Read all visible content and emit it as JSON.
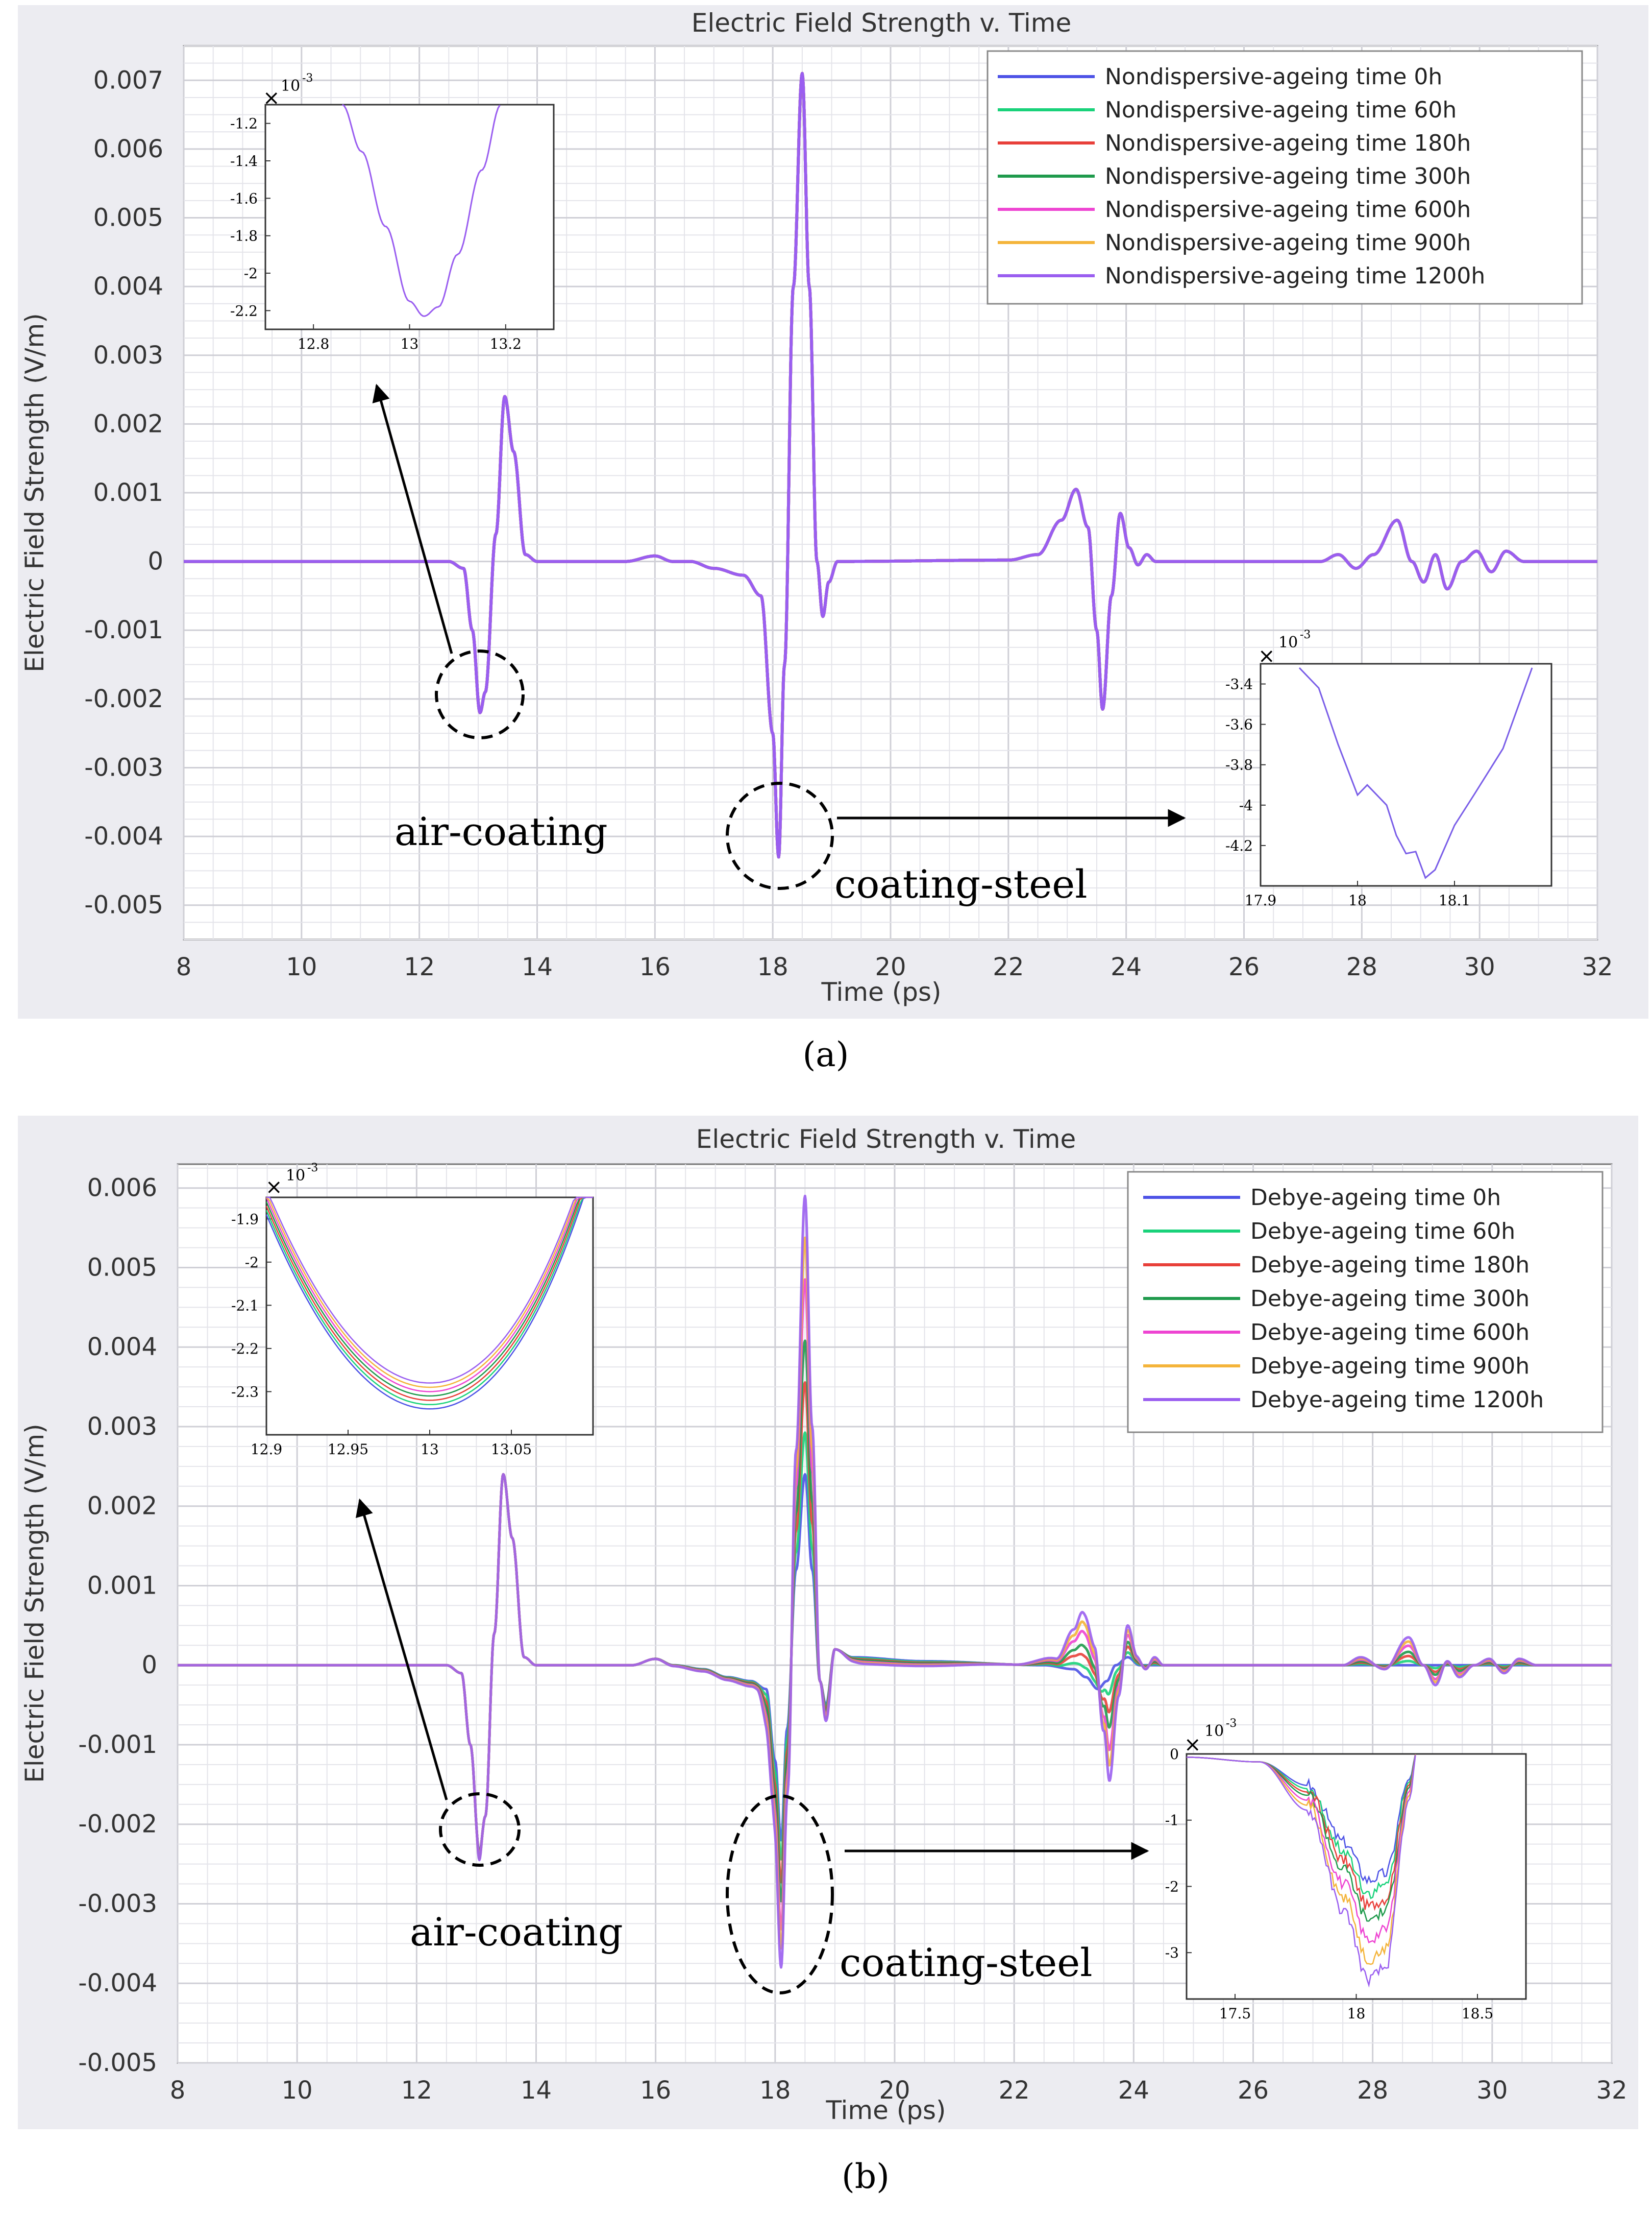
{
  "chart_data": [
    {
      "type": "line",
      "panel_label": "(a)",
      "title": "Electric Field Strength v. Time",
      "xlabel": "Time (ps)",
      "ylabel": "Electric Field Strength (V/m)",
      "xlim": [
        8,
        32
      ],
      "ylim": [
        -0.0055,
        0.0075
      ],
      "xticks": [
        8,
        10,
        12,
        14,
        16,
        18,
        20,
        22,
        24,
        26,
        28,
        30,
        32
      ],
      "yticks": [
        0.007,
        0.006,
        0.005,
        0.004,
        0.003,
        0.002,
        0.001,
        0,
        -0.001,
        -0.002,
        -0.003,
        -0.004,
        -0.005
      ],
      "ytick_labels": [
        "0.007",
        "0.006",
        "0.005",
        "0.004",
        "0.003",
        "0.002",
        "0.001",
        "0",
        "-0.001",
        "-0.002",
        "-0.003",
        "-0.004",
        "-0.005"
      ],
      "grid": true,
      "legend_position": "top-right",
      "series": [
        {
          "name": "Nondispersive-ageing time 0h",
          "color": "#4d52e6",
          "scale": 1.0
        },
        {
          "name": "Nondispersive-ageing time 60h",
          "color": "#19d27a",
          "scale": 1.0
        },
        {
          "name": "Nondispersive-ageing time 180h",
          "color": "#e8403a",
          "scale": 1.0
        },
        {
          "name": "Nondispersive-ageing time 300h",
          "color": "#1f9a4c",
          "scale": 1.0
        },
        {
          "name": "Nondispersive-ageing time 600h",
          "color": "#ee44d2",
          "scale": 1.0
        },
        {
          "name": "Nondispersive-ageing time 900h",
          "color": "#f4b43a",
          "scale": 1.0
        },
        {
          "name": "Nondispersive-ageing time 1200h",
          "color": "#9a5ef0",
          "scale": 1.0
        }
      ],
      "base_waveform": {
        "points": [
          [
            8,
            0
          ],
          [
            12.5,
            0
          ],
          [
            12.75,
            -0.0001
          ],
          [
            12.9,
            -0.001
          ],
          [
            13.03,
            -0.0022
          ],
          [
            13.12,
            -0.0019
          ],
          [
            13.3,
            0.0004
          ],
          [
            13.45,
            0.0024
          ],
          [
            13.6,
            0.0016
          ],
          [
            13.8,
            0.0001
          ],
          [
            14.0,
            0
          ],
          [
            15.5,
            0
          ],
          [
            16.0,
            8e-05
          ],
          [
            16.3,
            0
          ],
          [
            16.6,
            0
          ],
          [
            17.0,
            -0.0001
          ],
          [
            17.5,
            -0.0002
          ],
          [
            17.8,
            -0.0005
          ],
          [
            18.0,
            -0.0025
          ],
          [
            18.1,
            -0.0043
          ],
          [
            18.2,
            -0.0015
          ],
          [
            18.35,
            0.004
          ],
          [
            18.5,
            0.0071
          ],
          [
            18.62,
            0.004
          ],
          [
            18.75,
            0
          ],
          [
            18.85,
            -0.0008
          ],
          [
            18.95,
            -0.0003
          ],
          [
            19.1,
            0
          ],
          [
            22.0,
            2e-05
          ],
          [
            22.5,
            0.0001
          ],
          [
            22.9,
            0.0006
          ],
          [
            23.15,
            0.00105
          ],
          [
            23.35,
            0.0005
          ],
          [
            23.5,
            -0.001
          ],
          [
            23.6,
            -0.00215
          ],
          [
            23.75,
            -0.0005
          ],
          [
            23.9,
            0.0007
          ],
          [
            24.05,
            0.0002
          ],
          [
            24.2,
            -5e-05
          ],
          [
            24.35,
            0.0001
          ],
          [
            24.5,
            0
          ],
          [
            27.3,
            0
          ],
          [
            27.6,
            0.0001
          ],
          [
            27.9,
            -0.0001
          ],
          [
            28.2,
            0.0001
          ],
          [
            28.6,
            0.0006
          ],
          [
            28.85,
            0
          ],
          [
            29.05,
            -0.0003
          ],
          [
            29.25,
            0.0001
          ],
          [
            29.45,
            -0.0004
          ],
          [
            29.7,
            0
          ],
          [
            29.95,
            0.00015
          ],
          [
            30.2,
            -0.00015
          ],
          [
            30.45,
            0.00015
          ],
          [
            30.75,
            0
          ],
          [
            32,
            0
          ]
        ]
      },
      "annotations": [
        {
          "text": "air-coating"
        },
        {
          "text": "coating-steel"
        }
      ],
      "insets": [
        {
          "name": "inset-air-coating",
          "exponent": "10",
          "exponent_power": "-3",
          "xlim": [
            12.7,
            13.3
          ],
          "ylim": [
            -2.3,
            -1.1
          ],
          "xticks": [
            12.8,
            13,
            13.2
          ],
          "xtick_labels": [
            "12.8",
            "13",
            "13.2"
          ],
          "yticks": [
            -1.2,
            -1.4,
            -1.6,
            -1.8,
            -2,
            -2.2
          ],
          "ytick_labels": [
            "-1.2",
            "-1.4",
            "-1.6",
            "-1.8",
            "-2",
            "-2.2"
          ],
          "curve_points": [
            [
              12.86,
              -1.1
            ],
            [
              12.9,
              -1.35
            ],
            [
              12.95,
              -1.75
            ],
            [
              13.0,
              -2.15
            ],
            [
              13.03,
              -2.23
            ],
            [
              13.06,
              -2.18
            ],
            [
              13.1,
              -1.9
            ],
            [
              13.15,
              -1.45
            ],
            [
              13.19,
              -1.1
            ]
          ]
        },
        {
          "name": "inset-coating-steel",
          "exponent": "10",
          "exponent_power": "-3",
          "xlim": [
            17.9,
            18.2
          ],
          "ylim": [
            -4.4,
            -3.3
          ],
          "xticks": [
            17.9,
            18,
            18.1
          ],
          "xtick_labels": [
            "17.9",
            "18",
            "18.1"
          ],
          "yticks": [
            -3.4,
            -3.6,
            -3.8,
            -4,
            -4.2
          ],
          "ytick_labels": [
            "-3.4",
            "-3.6",
            "-3.8",
            "-4",
            "-4.2"
          ],
          "curve_points": [
            [
              17.94,
              -3.32
            ],
            [
              17.96,
              -3.42
            ],
            [
              17.98,
              -3.7
            ],
            [
              18.0,
              -3.95
            ],
            [
              18.01,
              -3.9
            ],
            [
              18.03,
              -4.0
            ],
            [
              18.04,
              -4.15
            ],
            [
              18.05,
              -4.24
            ],
            [
              18.06,
              -4.23
            ],
            [
              18.07,
              -4.36
            ],
            [
              18.08,
              -4.32
            ],
            [
              18.1,
              -4.1
            ],
            [
              18.12,
              -3.95
            ],
            [
              18.15,
              -3.72
            ],
            [
              18.18,
              -3.32
            ]
          ]
        }
      ]
    },
    {
      "type": "line",
      "panel_label": "(b)",
      "title": "Electric Field Strength v. Time",
      "xlabel": "Time (ps)",
      "ylabel": "Electric Field Strength (V/m)",
      "xlim": [
        8,
        32
      ],
      "ylim": [
        -0.005,
        0.0063
      ],
      "xticks": [
        8,
        10,
        12,
        14,
        16,
        18,
        20,
        22,
        24,
        26,
        28,
        30,
        32
      ],
      "yticks": [
        0.006,
        0.005,
        0.004,
        0.003,
        0.002,
        0.001,
        0,
        -0.001,
        -0.002,
        -0.003,
        -0.004,
        -0.005
      ],
      "ytick_labels": [
        "0.006",
        "0.005",
        "0.004",
        "0.003",
        "0.002",
        "0.001",
        "0",
        "-0.001",
        "-0.002",
        "-0.003",
        "-0.004",
        "-0.005"
      ],
      "grid": true,
      "legend_position": "top-right",
      "series": [
        {
          "name": "Debye-ageing time 0h",
          "color": "#4d52e6",
          "scale": 0.0
        },
        {
          "name": "Debye-ageing time 60h",
          "color": "#19d27a",
          "scale": 0.15
        },
        {
          "name": "Debye-ageing time 180h",
          "color": "#e8403a",
          "scale": 0.33
        },
        {
          "name": "Debye-ageing time 300h",
          "color": "#1f9a4c",
          "scale": 0.48
        },
        {
          "name": "Debye-ageing time 600h",
          "color": "#ee44d2",
          "scale": 0.7
        },
        {
          "name": "Debye-ageing time 900h",
          "color": "#f4b43a",
          "scale": 0.85
        },
        {
          "name": "Debye-ageing time 1200h",
          "color": "#9a5ef0",
          "scale": 1.0
        }
      ],
      "base_waveform": {
        "points": [
          [
            8,
            0
          ],
          [
            12.5,
            0
          ],
          [
            12.75,
            -0.0001
          ],
          [
            12.9,
            -0.001
          ],
          [
            13.05,
            -0.00235
          ],
          [
            13.15,
            -0.0019
          ],
          [
            13.3,
            0.0004
          ],
          [
            13.45,
            0.0024
          ],
          [
            13.6,
            0.0016
          ],
          [
            13.8,
            0.0001
          ],
          [
            14.0,
            0
          ],
          [
            15.6,
            0
          ],
          [
            16.0,
            8e-05
          ],
          [
            16.3,
            0
          ],
          [
            16.8,
            -5e-05
          ],
          [
            17.2,
            -0.00015
          ],
          [
            17.6,
            -0.0002
          ],
          [
            17.85,
            -0.0003
          ],
          [
            18.0,
            -0.0012
          ],
          [
            18.1,
            -0.0022
          ],
          [
            18.2,
            -0.0008
          ],
          [
            18.35,
            0.0012
          ],
          [
            18.5,
            0.0024
          ],
          [
            18.62,
            0.0012
          ],
          [
            18.75,
            -0.0002
          ],
          [
            18.85,
            -0.0005
          ],
          [
            19.0,
            0.0002
          ],
          [
            19.3,
            0.0001
          ],
          [
            20.5,
            5e-05
          ],
          [
            22.5,
            0
          ],
          [
            23.0,
            -5e-05
          ],
          [
            23.2,
            -0.00015
          ],
          [
            23.4,
            -0.0003
          ],
          [
            23.55,
            -0.0002
          ],
          [
            23.7,
            0
          ],
          [
            23.9,
            0.0001
          ],
          [
            24.1,
            0
          ],
          [
            32,
            0
          ]
        ]
      },
      "ageing_delta": {
        "points": [
          [
            8,
            0
          ],
          [
            13.0,
            0
          ],
          [
            13.05,
            -0.0001
          ],
          [
            13.1,
            0
          ],
          [
            15.8,
            0
          ],
          [
            17.0,
            -3e-05
          ],
          [
            17.7,
            -7e-05
          ],
          [
            17.95,
            -0.0007
          ],
          [
            18.1,
            -0.0016
          ],
          [
            18.22,
            -0.0008
          ],
          [
            18.35,
            0.0015
          ],
          [
            18.5,
            0.0035
          ],
          [
            18.62,
            0.0018
          ],
          [
            18.75,
            0
          ],
          [
            18.85,
            -0.0002
          ],
          [
            19.0,
            0
          ],
          [
            19.5,
            -8e-05
          ],
          [
            20.5,
            -6e-05
          ],
          [
            22.0,
            0
          ],
          [
            22.7,
            0.0001
          ],
          [
            23.0,
            0.0005
          ],
          [
            23.15,
            0.0008
          ],
          [
            23.35,
            0.0005
          ],
          [
            23.5,
            -0.0006
          ],
          [
            23.6,
            -0.0013
          ],
          [
            23.75,
            -0.0004
          ],
          [
            23.9,
            0.0004
          ],
          [
            24.05,
            0.0001
          ],
          [
            24.2,
            -5e-05
          ],
          [
            24.35,
            0.0001
          ],
          [
            24.5,
            0
          ],
          [
            27.5,
            0
          ],
          [
            27.8,
            0.0001
          ],
          [
            28.2,
            -5e-05
          ],
          [
            28.6,
            0.00035
          ],
          [
            28.85,
            0
          ],
          [
            29.05,
            -0.00025
          ],
          [
            29.25,
            5e-05
          ],
          [
            29.45,
            -0.00015
          ],
          [
            29.7,
            0
          ],
          [
            29.95,
            8e-05
          ],
          [
            30.2,
            -0.0001
          ],
          [
            30.45,
            8e-05
          ],
          [
            30.75,
            0
          ],
          [
            32,
            0
          ]
        ]
      },
      "annotations": [
        {
          "text": "air-coating"
        },
        {
          "text": "coating-steel"
        }
      ],
      "insets": [
        {
          "name": "inset-air-coating",
          "exponent": "10",
          "exponent_power": "-3",
          "xlim": [
            12.9,
            13.1
          ],
          "ylim": [
            -2.4,
            -1.85
          ],
          "xticks": [
            12.9,
            12.95,
            13,
            13.05
          ],
          "xtick_labels": [
            "12.9",
            "12.95",
            "13",
            "13.05"
          ],
          "yticks": [
            -1.9,
            -2,
            -2.1,
            -2.2,
            -2.3
          ],
          "ytick_labels": [
            "-1.9",
            "-2",
            "-2.1",
            "-2.2",
            "-2.3"
          ],
          "min_values": [
            -2.34,
            -2.33,
            -2.32,
            -2.31,
            -2.3,
            -2.29,
            -2.28
          ]
        },
        {
          "name": "inset-coating-steel",
          "exponent": "10",
          "exponent_power": "-3",
          "xlim": [
            17.3,
            18.7
          ],
          "ylim": [
            -3.7,
            0
          ],
          "xticks": [
            17.5,
            18,
            18.5
          ],
          "xtick_labels": [
            "17.5",
            "18",
            "18.5"
          ],
          "yticks": [
            0,
            -1,
            -2,
            -3
          ],
          "ytick_labels": [
            "0",
            "-1",
            "-2",
            "-3"
          ],
          "min_values": [
            -1.9,
            -2.1,
            -2.3,
            -2.5,
            -2.8,
            -3.1,
            -3.4
          ]
        }
      ]
    }
  ]
}
